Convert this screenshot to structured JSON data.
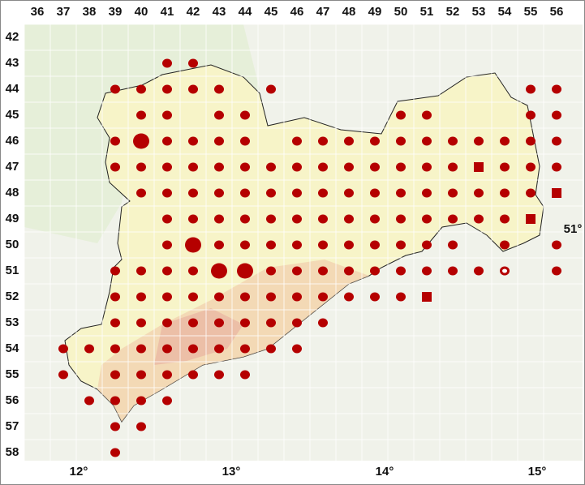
{
  "map": {
    "columns": [
      36,
      37,
      38,
      39,
      40,
      41,
      42,
      43,
      44,
      45,
      46,
      47,
      48,
      49,
      50,
      51,
      52,
      53,
      54,
      55,
      56
    ],
    "rows": [
      42,
      43,
      44,
      45,
      46,
      47,
      48,
      49,
      50,
      51,
      52,
      53,
      54,
      55,
      56,
      57,
      58
    ],
    "longitudes": [
      "12°",
      "13°",
      "14°",
      "15°"
    ],
    "latitude": "51°"
  }
}
